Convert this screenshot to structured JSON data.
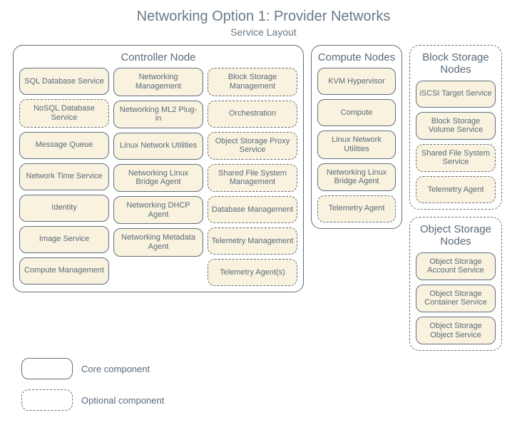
{
  "title": "Networking Option 1: Provider Networks",
  "subtitle": "Service Layout",
  "colors": {
    "component_fill": "#f9f2de",
    "border": "#60707e",
    "text": "#5a6a7a",
    "background": "#ffffff"
  },
  "style": {
    "border_radius_group": 14,
    "border_radius_component": 10,
    "border_width": 1.5,
    "component_fontsize": 11,
    "group_title_fontsize": 15,
    "title_fontsize": 20,
    "subtitle_fontsize": 14
  },
  "legend": {
    "core": "Core component",
    "optional": "Optional component"
  },
  "controller": {
    "title": "Controller Node",
    "border_style": "solid",
    "columns": [
      [
        {
          "label": "SQL Database Service",
          "style": "solid"
        },
        {
          "label": "NoSQL Database Service",
          "style": "dashed"
        },
        {
          "label": "Message Queue",
          "style": "solid"
        },
        {
          "label": "Network Time Service",
          "style": "solid"
        },
        {
          "label": "Identity",
          "style": "solid"
        },
        {
          "label": "Image Service",
          "style": "solid"
        },
        {
          "label": "Compute Management",
          "style": "solid"
        }
      ],
      [
        {
          "label": "Networking Management",
          "style": "solid"
        },
        {
          "label": "Networking ML2 Plug-in",
          "style": "solid"
        },
        {
          "label": "Linux Network Utilities",
          "style": "solid"
        },
        {
          "label": "Networking Linux Bridge Agent",
          "style": "solid"
        },
        {
          "label": "Networking DHCP Agent",
          "style": "solid"
        },
        {
          "label": "Networking Metadata Agent",
          "style": "solid"
        }
      ],
      [
        {
          "label": "Block Storage Management",
          "style": "dashed"
        },
        {
          "label": "Orchestration",
          "style": "dashed"
        },
        {
          "label": "Object Storage Proxy Service",
          "style": "dashed"
        },
        {
          "label": "Shared File System Management",
          "style": "dashed"
        },
        {
          "label": "Database Management",
          "style": "dashed"
        },
        {
          "label": "Telemetry Management",
          "style": "dashed"
        },
        {
          "label": "Telemetry Agent(s)",
          "style": "dashed"
        }
      ]
    ]
  },
  "compute": {
    "title": "Compute Nodes",
    "border_style": "solid",
    "items": [
      {
        "label": "KVM Hypervisor",
        "style": "solid"
      },
      {
        "label": "Compute",
        "style": "solid"
      },
      {
        "label": "Linux Network Utilities",
        "style": "solid"
      },
      {
        "label": "Networking Linux Bridge Agent",
        "style": "solid"
      },
      {
        "label": "Telemetry Agent",
        "style": "dashed"
      }
    ]
  },
  "block_storage": {
    "title": "Block Storage Nodes",
    "border_style": "dashed",
    "items": [
      {
        "label": "iSCSI Target Service",
        "style": "solid"
      },
      {
        "label": "Block Storage Volume Service",
        "style": "solid"
      },
      {
        "label": "Shared File System Service",
        "style": "dashed"
      },
      {
        "label": "Telemetry Agent",
        "style": "dashed"
      }
    ]
  },
  "object_storage": {
    "title": "Object Storage Nodes",
    "border_style": "dashed",
    "items": [
      {
        "label": "Object Storage Account Service",
        "style": "solid"
      },
      {
        "label": "Object Storage Container Service",
        "style": "solid"
      },
      {
        "label": "Object Storage Object Service",
        "style": "solid"
      }
    ]
  }
}
